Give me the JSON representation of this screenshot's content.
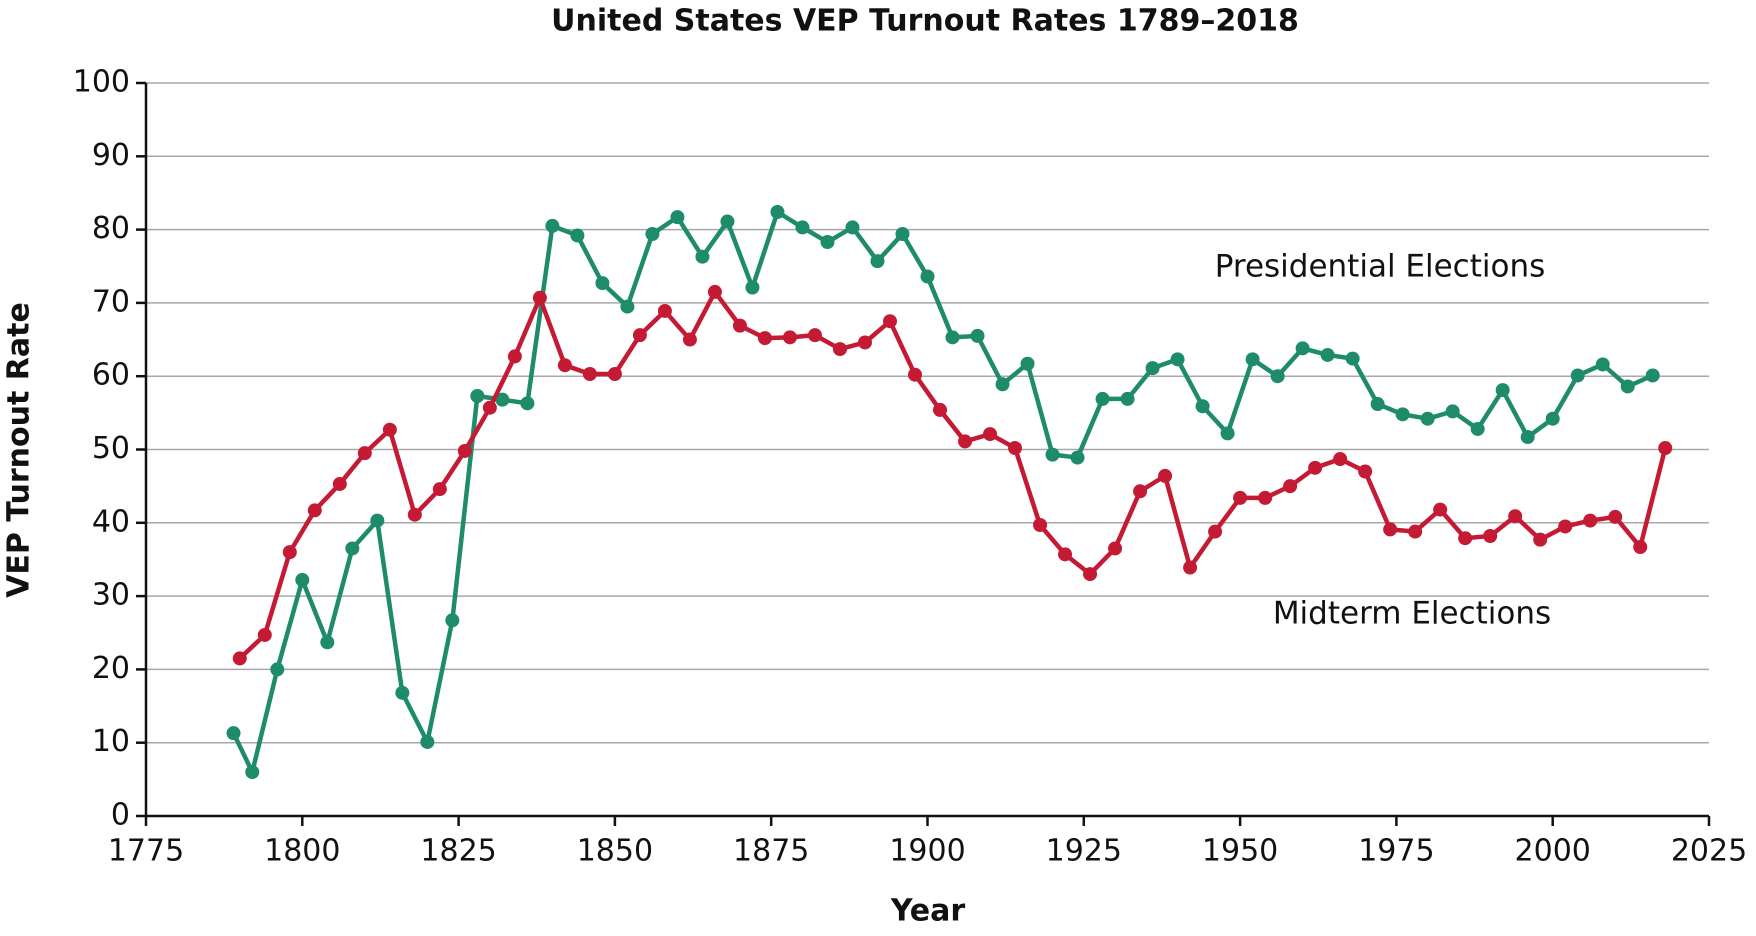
{
  "chart_data": {
    "type": "line",
    "title": "United States VEP Turnout Rates 1789–2018",
    "xlabel": "Year",
    "ylabel": "VEP Turnout Rate",
    "xlim": [
      1775,
      2025
    ],
    "xticks": [
      1775,
      1800,
      1825,
      1850,
      1875,
      1900,
      1925,
      1950,
      1975,
      2000,
      2025
    ],
    "ylim": [
      0,
      100
    ],
    "yticks": [
      0,
      10,
      20,
      30,
      40,
      50,
      60,
      70,
      80,
      90,
      100
    ],
    "grid": true,
    "annotations": [
      "Presidential Elections",
      "Midterm Elections"
    ],
    "series": [
      {
        "name": "Presidential Elections",
        "color": "#1e8c6a",
        "x": [
          1789,
          1792,
          1796,
          1800,
          1804,
          1808,
          1812,
          1816,
          1820,
          1824,
          1828,
          1832,
          1836,
          1840,
          1844,
          1848,
          1852,
          1856,
          1860,
          1864,
          1868,
          1872,
          1876,
          1880,
          1884,
          1888,
          1892,
          1896,
          1900,
          1904,
          1908,
          1912,
          1916,
          1920,
          1924,
          1928,
          1932,
          1936,
          1940,
          1944,
          1948,
          1952,
          1956,
          1960,
          1964,
          1968,
          1972,
          1976,
          1980,
          1984,
          1988,
          1992,
          1996,
          2000,
          2004,
          2008,
          2012,
          2016
        ],
        "values": [
          11.3,
          6.0,
          20.0,
          32.2,
          23.7,
          36.5,
          40.3,
          16.8,
          10.1,
          26.7,
          57.3,
          56.8,
          56.3,
          80.5,
          79.2,
          72.7,
          69.5,
          79.4,
          81.7,
          76.3,
          81.1,
          72.1,
          82.4,
          80.3,
          78.3,
          80.3,
          75.7,
          79.4,
          73.6,
          65.3,
          65.5,
          58.9,
          61.7,
          49.3,
          48.9,
          56.9,
          56.9,
          61.1,
          62.3,
          55.9,
          52.2,
          62.3,
          60.0,
          63.8,
          62.9,
          62.4,
          56.2,
          54.8,
          54.2,
          55.2,
          52.8,
          58.1,
          51.7,
          54.2,
          60.1,
          61.6,
          58.6,
          60.1
        ]
      },
      {
        "name": "Midterm Elections",
        "color": "#c41a34",
        "x": [
          1790,
          1794,
          1798,
          1802,
          1806,
          1810,
          1814,
          1818,
          1822,
          1826,
          1830,
          1834,
          1838,
          1842,
          1846,
          1850,
          1854,
          1858,
          1862,
          1866,
          1870,
          1874,
          1878,
          1882,
          1886,
          1890,
          1894,
          1898,
          1902,
          1906,
          1910,
          1914,
          1918,
          1922,
          1926,
          1930,
          1934,
          1938,
          1942,
          1946,
          1950,
          1954,
          1958,
          1962,
          1966,
          1970,
          1974,
          1978,
          1982,
          1986,
          1990,
          1994,
          1998,
          2002,
          2006,
          2010,
          2014,
          2018
        ],
        "values": [
          21.5,
          24.7,
          36.0,
          41.7,
          45.3,
          49.5,
          52.7,
          41.1,
          44.6,
          49.8,
          55.7,
          62.7,
          70.7,
          61.5,
          60.3,
          60.3,
          65.6,
          68.9,
          65.0,
          71.5,
          66.9,
          65.2,
          65.3,
          65.6,
          63.7,
          64.6,
          67.5,
          60.2,
          55.4,
          51.1,
          52.1,
          50.2,
          39.7,
          35.7,
          33.0,
          36.5,
          44.3,
          46.4,
          33.9,
          38.8,
          43.4,
          43.4,
          45.0,
          47.5,
          48.7,
          47.0,
          39.1,
          38.8,
          41.8,
          37.9,
          38.2,
          40.9,
          37.7,
          39.5,
          40.3,
          40.8,
          36.7,
          50.2
        ]
      }
    ]
  }
}
